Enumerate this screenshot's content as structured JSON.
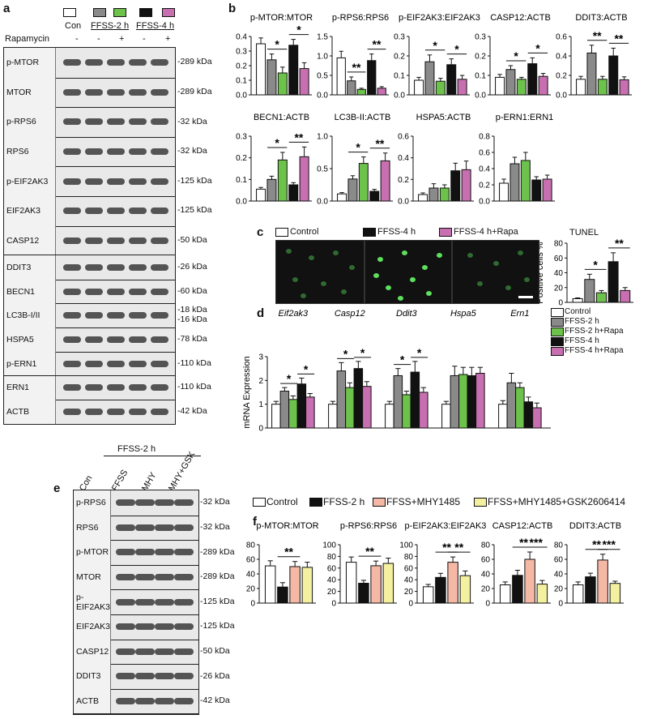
{
  "panel_letters": {
    "a": "a",
    "b": "b",
    "c": "c",
    "d": "d",
    "e": "e",
    "f": "f"
  },
  "colors": {
    "control": "#ffffff",
    "ffss2": "#8a8a8a",
    "rapa2": "#6cc24a",
    "ffss4": "#111111",
    "rapa4": "#c76fb0",
    "salmon": "#f4b8a5",
    "yellow": "#f3f0a0"
  },
  "panel_a": {
    "legend_con": "Con",
    "legend_ffss2": "FFSS-2 h",
    "legend_ffss4": "FFSS-4 h",
    "rapamycin_label": "Rapamycin",
    "rapa_signs": [
      "-",
      "-",
      "+",
      "-",
      "+"
    ],
    "rows": [
      {
        "label": "p-MTOR",
        "kda": "-289 kDa"
      },
      {
        "label": "MTOR",
        "kda": "-289 kDa"
      },
      {
        "label": "p-RPS6",
        "kda": "-32 kDa"
      },
      {
        "label": "RPS6",
        "kda": "-32 kDa"
      },
      {
        "label": "p-EIF2AK3",
        "kda": "-125 kDa"
      },
      {
        "label": "EIF2AK3",
        "kda": "-125 kDa"
      },
      {
        "label": "CASP12",
        "kda": "-50 kDa"
      },
      {
        "label": "DDIT3",
        "kda": "-26 kDa"
      },
      {
        "label": "BECN1",
        "kda": "-60 kDa"
      },
      {
        "label": "LC3B-I/II",
        "kda": "-18 kDa",
        "kda2": "-16 kDa"
      },
      {
        "label": "HSPA5",
        "kda": "-78 kDa"
      },
      {
        "label": "p-ERN1",
        "kda": "-110 kDa"
      },
      {
        "label": "ERN1",
        "kda": "-110 kDa"
      },
      {
        "label": "ACTB",
        "kda": "-42 kDa"
      }
    ]
  },
  "panel_c": {
    "legend": [
      "Control",
      "FFSS-4 h",
      "FFSS-4 h+Rapa"
    ],
    "tunel_title": "TUNEL"
  },
  "panel_d": {
    "legend": [
      "Control",
      "FFSS-2 h",
      "FFSS-2 h+Rapa",
      "FFSS-4 h",
      "FFSS-4 h+Rapa"
    ]
  },
  "panel_e": {
    "group_label": "FFSS-2 h",
    "lane_labels": [
      "Con",
      "FFSS",
      "MHY",
      "MHY+GSK"
    ],
    "rows": [
      {
        "label": "p-RPS6",
        "kda": "-32 kDa"
      },
      {
        "label": "RPS6",
        "kda": "-32 kDa"
      },
      {
        "label": "p-MTOR",
        "kda": "-289 kDa"
      },
      {
        "label": "MTOR",
        "kda": "-289 kDa"
      },
      {
        "label": "p-EIF2AK3",
        "kda": "-125 kDa"
      },
      {
        "label": "EIF2AK3",
        "kda": "-125 kDa"
      },
      {
        "label": "CASP12",
        "kda": "-50 kDa"
      },
      {
        "label": "DDIT3",
        "kda": "-26 kDa"
      },
      {
        "label": "ACTB",
        "kda": "-42 kDa"
      }
    ]
  },
  "panel_f": {
    "legend": [
      "Control",
      "FFSS-2 h",
      "FFSS+MHY1485",
      "FFSS+MHY1485+GSK2606414"
    ]
  },
  "chart_data": [
    {
      "id": "b1",
      "type": "bar",
      "title": "p-MTOR:MTOR",
      "ylim": [
        0,
        0.4
      ],
      "yticks": [
        "0.0",
        "0.1",
        "0.2",
        "0.3",
        "0.4"
      ],
      "values": [
        0.35,
        0.24,
        0.15,
        0.34,
        0.18
      ],
      "errors": [
        0.04,
        0.04,
        0.04,
        0.04,
        0.04
      ],
      "sig": [
        {
          "from": 1,
          "to": 2,
          "label": "*"
        },
        {
          "from": 3,
          "to": 4,
          "label": "*"
        }
      ]
    },
    {
      "id": "b2",
      "type": "bar",
      "title": "p-RPS6:RPS6",
      "ylim": [
        0,
        1.5
      ],
      "yticks": [
        "0.0",
        "0.5",
        "1.0",
        "1.5"
      ],
      "values": [
        0.95,
        0.36,
        0.14,
        0.88,
        0.17
      ],
      "errors": [
        0.17,
        0.1,
        0.03,
        0.17,
        0.04
      ],
      "sig": [
        {
          "from": 1,
          "to": 2,
          "label": "**"
        },
        {
          "from": 3,
          "to": 4,
          "label": "**"
        }
      ]
    },
    {
      "id": "b3",
      "type": "bar",
      "title": "p-EIF2AK3:EIF2AK3",
      "ylim": [
        0,
        0.3
      ],
      "yticks": [
        "0.0",
        "0.1",
        "0.2",
        "0.3"
      ],
      "values": [
        0.075,
        0.17,
        0.07,
        0.155,
        0.08
      ],
      "errors": [
        0.015,
        0.035,
        0.015,
        0.03,
        0.02
      ],
      "sig": [
        {
          "from": 1,
          "to": 2,
          "label": "*"
        },
        {
          "from": 3,
          "to": 4,
          "label": "*"
        }
      ]
    },
    {
      "id": "b4",
      "type": "bar",
      "title": "CASP12:ACTB",
      "ylim": [
        0,
        0.3
      ],
      "yticks": [
        "0.0",
        "0.1",
        "0.2",
        "0.3"
      ],
      "values": [
        0.09,
        0.13,
        0.08,
        0.16,
        0.095
      ],
      "errors": [
        0.015,
        0.02,
        0.01,
        0.03,
        0.015
      ],
      "sig": [
        {
          "from": 1,
          "to": 2,
          "label": "*"
        },
        {
          "from": 3,
          "to": 4,
          "label": "*"
        }
      ]
    },
    {
      "id": "b5",
      "type": "bar",
      "title": "DDIT3:ACTB",
      "ylim": [
        0,
        0.6
      ],
      "yticks": [
        "0.0",
        "0.2",
        "0.4",
        "0.6"
      ],
      "values": [
        0.16,
        0.43,
        0.16,
        0.4,
        0.155
      ],
      "errors": [
        0.03,
        0.08,
        0.03,
        0.08,
        0.03
      ],
      "sig": [
        {
          "from": 1,
          "to": 2,
          "label": "**"
        },
        {
          "from": 3,
          "to": 4,
          "label": "**"
        }
      ]
    },
    {
      "id": "b6",
      "type": "bar",
      "title": "BECN1:ACTB",
      "ylim": [
        0,
        0.3
      ],
      "yticks": [
        "0.0",
        "0.1",
        "0.2",
        "0.3"
      ],
      "values": [
        0.055,
        0.1,
        0.19,
        0.075,
        0.205
      ],
      "errors": [
        0.008,
        0.015,
        0.035,
        0.01,
        0.045
      ],
      "sig": [
        {
          "from": 1,
          "to": 2,
          "label": "*"
        },
        {
          "from": 3,
          "to": 4,
          "label": "**"
        }
      ]
    },
    {
      "id": "b7",
      "type": "bar",
      "title": "LC3B-II:ACTB",
      "ylim": [
        0,
        1.0
      ],
      "yticks": [
        "0.0",
        "0.5",
        "1.0"
      ],
      "values": [
        0.11,
        0.34,
        0.58,
        0.15,
        0.62
      ],
      "errors": [
        0.02,
        0.05,
        0.1,
        0.03,
        0.12
      ],
      "sig": [
        {
          "from": 1,
          "to": 2,
          "label": "*"
        },
        {
          "from": 3,
          "to": 4,
          "label": "**"
        }
      ]
    },
    {
      "id": "b8",
      "type": "bar",
      "title": "HSPA5:ACTB",
      "ylim": [
        0,
        0.6
      ],
      "yticks": [
        "0.0",
        "0.2",
        "0.4",
        "0.6"
      ],
      "values": [
        0.06,
        0.12,
        0.12,
        0.28,
        0.29
      ],
      "errors": [
        0.015,
        0.04,
        0.03,
        0.07,
        0.08
      ],
      "sig": []
    },
    {
      "id": "b9",
      "type": "bar",
      "title": "p-ERN1:ERN1",
      "ylim": [
        0,
        0.8
      ],
      "yticks": [
        "0.0",
        "0.2",
        "0.4",
        "0.6",
        "0.8"
      ],
      "values": [
        0.22,
        0.46,
        0.5,
        0.26,
        0.27
      ],
      "errors": [
        0.05,
        0.08,
        0.1,
        0.04,
        0.05
      ],
      "sig": []
    },
    {
      "id": "c1",
      "type": "bar",
      "title": "",
      "ylabel": "Positive cells %",
      "ylim": [
        0,
        80
      ],
      "yticks": [
        "0",
        "20",
        "40",
        "60",
        "80"
      ],
      "values": [
        5,
        31,
        13,
        55,
        16
      ],
      "errors": [
        1,
        7,
        3,
        12,
        4
      ],
      "sig": [
        {
          "from": 1,
          "to": 2,
          "label": "*"
        },
        {
          "from": 3,
          "to": 4,
          "label": "**"
        }
      ]
    },
    {
      "id": "d1",
      "type": "bar",
      "title": "",
      "ylabel": "mRNA Expression",
      "ylim": [
        0,
        3
      ],
      "yticks": [
        "0",
        "1",
        "2",
        "3"
      ],
      "groups": [
        "Eif2ak3",
        "Casp12",
        "Ddit3",
        "Hspa5",
        "Ern1"
      ],
      "values": [
        [
          1.0,
          1.55,
          1.2,
          1.85,
          1.3
        ],
        [
          1.0,
          2.4,
          1.7,
          2.5,
          1.75
        ],
        [
          1.0,
          2.2,
          1.4,
          2.35,
          1.5
        ],
        [
          1.0,
          2.2,
          2.25,
          2.2,
          2.3
        ],
        [
          1.0,
          1.9,
          1.7,
          1.1,
          0.85
        ]
      ],
      "errors": [
        [
          0.12,
          0.15,
          0.15,
          0.25,
          0.15
        ],
        [
          0.12,
          0.35,
          0.2,
          0.3,
          0.2
        ],
        [
          0.12,
          0.3,
          0.15,
          0.45,
          0.2
        ],
        [
          0.12,
          0.4,
          0.3,
          0.35,
          0.25
        ],
        [
          0.15,
          0.4,
          0.2,
          0.2,
          0.2
        ]
      ],
      "sig": [
        {
          "g": 0,
          "from": 1,
          "to": 2,
          "label": "*"
        },
        {
          "g": 0,
          "from": 3,
          "to": 4,
          "label": "*"
        },
        {
          "g": 1,
          "from": 1,
          "to": 2,
          "label": "*"
        },
        {
          "g": 1,
          "from": 3,
          "to": 4,
          "label": "*"
        },
        {
          "g": 2,
          "from": 1,
          "to": 2,
          "label": "*"
        },
        {
          "g": 2,
          "from": 3,
          "to": 4,
          "label": "*"
        }
      ]
    },
    {
      "id": "f1",
      "type": "bar",
      "title": "p-MTOR:MTOR",
      "ylim": [
        0,
        80
      ],
      "yticks": [
        "0",
        "20",
        "40",
        "60",
        "80"
      ],
      "values": [
        51,
        22,
        50,
        49
      ],
      "errors": [
        7,
        6,
        7,
        7
      ],
      "sig": [
        {
          "from": 1,
          "to": 2,
          "label": "**"
        }
      ]
    },
    {
      "id": "f2",
      "type": "bar",
      "title": "p-RPS6:RPS6",
      "ylim": [
        0,
        100
      ],
      "yticks": [
        "0",
        "20",
        "40",
        "60",
        "80",
        "100"
      ],
      "values": [
        70,
        34,
        64,
        68
      ],
      "errors": [
        9,
        5,
        8,
        9
      ],
      "sig": [
        {
          "from": 1,
          "to": 2,
          "label": "**"
        }
      ]
    },
    {
      "id": "f3",
      "type": "bar",
      "title": "p-EIF2AK3:EIF2AK3",
      "ylim": [
        0,
        100
      ],
      "yticks": [
        "0",
        "20",
        "40",
        "60",
        "80",
        "100"
      ],
      "values": [
        28,
        44,
        70,
        47
      ],
      "errors": [
        4,
        7,
        9,
        8
      ],
      "sig": [
        {
          "from": 1,
          "to": 2,
          "label": "**"
        },
        {
          "from": 2,
          "to": 3,
          "label": "**"
        }
      ]
    },
    {
      "id": "f4",
      "type": "bar",
      "title": "CASP12:ACTB",
      "ylim": [
        0,
        80
      ],
      "yticks": [
        "0",
        "20",
        "40",
        "60",
        "80"
      ],
      "values": [
        25,
        38,
        60,
        26
      ],
      "errors": [
        4,
        7,
        10,
        5
      ],
      "sig": [
        {
          "from": 1,
          "to": 2,
          "label": "**"
        },
        {
          "from": 2,
          "to": 3,
          "label": "***"
        }
      ]
    },
    {
      "id": "f5",
      "type": "bar",
      "title": "DDIT3:ACTB",
      "ylim": [
        0,
        80
      ],
      "yticks": [
        "0",
        "20",
        "40",
        "60",
        "80"
      ],
      "values": [
        25,
        36,
        59,
        27
      ],
      "errors": [
        4,
        5,
        8,
        3
      ],
      "sig": [
        {
          "from": 1,
          "to": 2,
          "label": "**"
        },
        {
          "from": 2,
          "to": 3,
          "label": "***"
        }
      ]
    }
  ]
}
